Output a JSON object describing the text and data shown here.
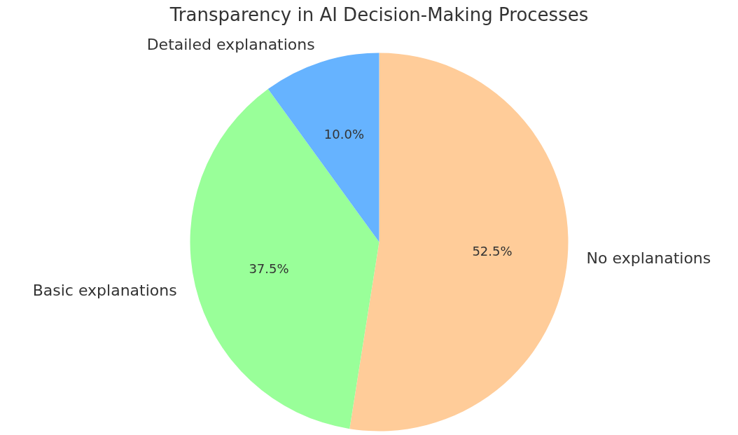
{
  "chart_data": {
    "type": "pie",
    "title": "Transparency in AI Decision-Making Processes",
    "categories": [
      "No explanations",
      "Basic explanations",
      "Detailed explanations"
    ],
    "values": [
      52.5,
      37.5,
      10.0
    ],
    "colors": [
      "#ffcc99",
      "#99ff99",
      "#66b3ff"
    ],
    "value_labels": [
      "52.5%",
      "37.5%",
      "10.0%"
    ]
  }
}
